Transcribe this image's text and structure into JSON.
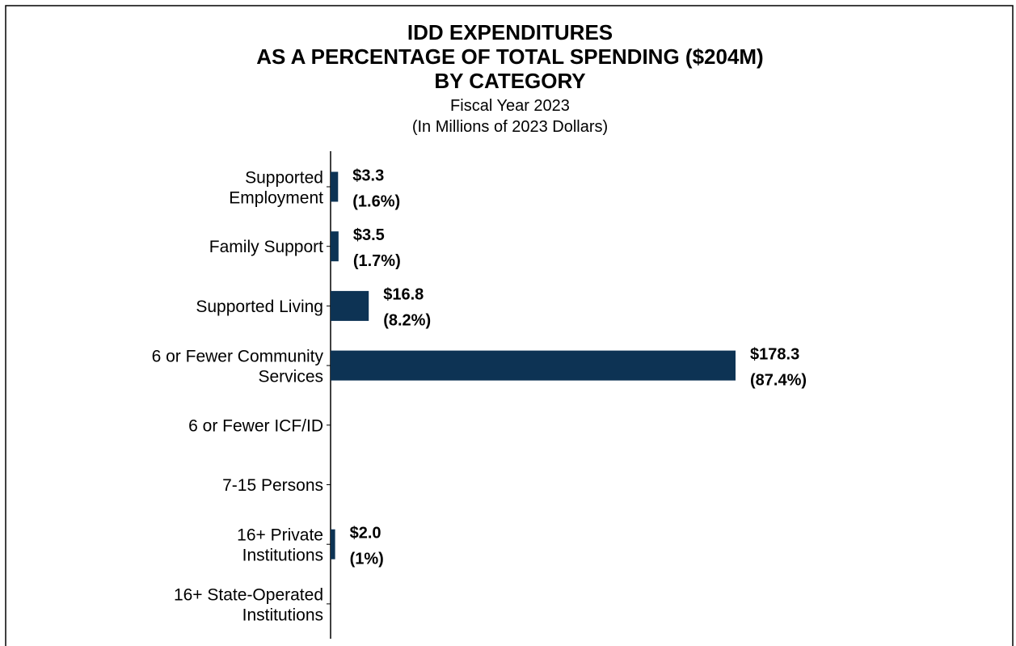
{
  "chart_data": {
    "type": "hbar",
    "title": "IDD EXPENDITURES\nAS A PERCENTAGE OF TOTAL SPENDING ($204M)\nBY CATEGORY",
    "subtitle": "Fiscal Year 2023\n(In Millions of 2023 Dollars)",
    "categories": [
      "Supported\nEmployment",
      "Family Support",
      "Supported Living",
      "6 or Fewer Community\nServices",
      "6 or Fewer ICF/ID",
      "7-15 Persons",
      "16+ Private\nInstitutions",
      "16+ State-Operated\nInstitutions"
    ],
    "values": [
      3.3,
      3.5,
      16.8,
      178.3,
      0,
      0,
      2.0,
      0
    ],
    "value_labels": [
      "$3.3",
      "$3.5",
      "$16.8",
      "$178.3",
      null,
      null,
      "$2.0",
      null
    ],
    "percent_labels": [
      "(1.6%)",
      "(1.7%)",
      "(8.2%)",
      "(87.4%)",
      null,
      null,
      "(1%)",
      null
    ],
    "color": "#0d3354",
    "xlim": [
      0,
      200
    ]
  }
}
